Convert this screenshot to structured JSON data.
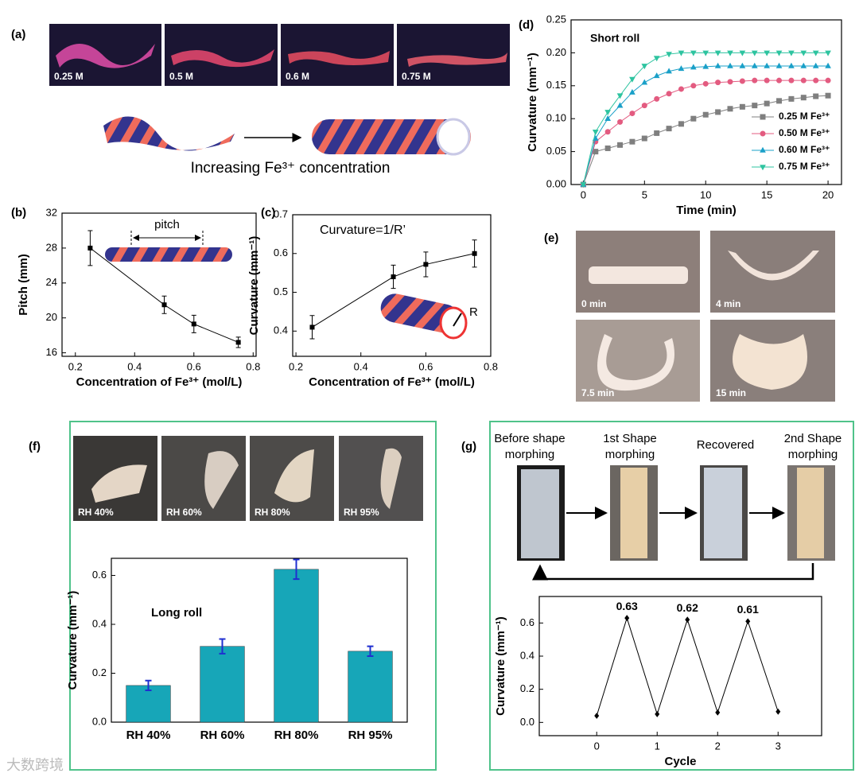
{
  "panel_labels": [
    "(a)",
    "(b)",
    "(c)",
    "(d)",
    "(e)",
    "(f)",
    "(g)"
  ],
  "panel_a": {
    "photo_labels": [
      "0.25 M",
      "0.5 M",
      "0.6 M",
      "0.75 M"
    ],
    "caption": "Increasing Fe³⁺ concentration"
  },
  "panel_e": {
    "photo_labels": [
      "0 min",
      "4 min",
      "7.5 min",
      "15 min"
    ]
  },
  "panel_f": {
    "photo_labels": [
      "RH 40%",
      "RH 60%",
      "RH 80%",
      "RH 95%"
    ]
  },
  "panel_g": {
    "steps": [
      "Before shape morphing",
      "1st Shape morphing",
      "Recovered",
      "2nd Shape morphing"
    ]
  },
  "watermark": "大数跨境",
  "chart_data": [
    {
      "type": "line",
      "x": [
        0.25,
        0.5,
        0.6,
        0.75
      ],
      "values": [
        28,
        21.5,
        19.3,
        17.2
      ],
      "errors": [
        2,
        1,
        1,
        0.6
      ],
      "color": "#000000",
      "marker": "square",
      "xlabel": "Concentration of Fe³⁺ (mol/L)",
      "ylabel": "Pitch (mm)",
      "annotation": "pitch",
      "xlim": [
        0.155,
        0.81
      ],
      "ylim": [
        15.6,
        32
      ],
      "xticks": [
        0.2,
        0.4,
        0.6,
        0.8
      ],
      "yticks": [
        16,
        20,
        24,
        28,
        32
      ]
    },
    {
      "type": "line",
      "x": [
        0.25,
        0.5,
        0.6,
        0.75
      ],
      "values": [
        0.41,
        0.54,
        0.572,
        0.6
      ],
      "errors": [
        0.03,
        0.03,
        0.032,
        0.035
      ],
      "color": "#000000",
      "marker": "square",
      "xlabel": "Concentration of Fe³⁺ (mol/L)",
      "ylabel": "Curvature (mm⁻¹)",
      "annotation": "Curvature=1/R’",
      "annotation2": "R",
      "xlim": [
        0.19,
        0.8
      ],
      "ylim": [
        0.335,
        0.7
      ],
      "xticks": [
        0.2,
        0.4,
        0.6,
        0.8
      ],
      "yticks": [
        0.4,
        0.5,
        0.6,
        0.7
      ]
    },
    {
      "type": "line",
      "title": "Short roll",
      "xlabel": "Time (min)",
      "ylabel": "Curvature (mm⁻¹)",
      "x": [
        0,
        1,
        2,
        3,
        4,
        5,
        6,
        7,
        8,
        9,
        10,
        11,
        12,
        13,
        14,
        15,
        16,
        17,
        18,
        19,
        20
      ],
      "series": [
        {
          "name": "0.25 M Fe³⁺",
          "color": "#7f7f7f",
          "marker": "square",
          "values": [
            0,
            0.05,
            0.055,
            0.06,
            0.065,
            0.07,
            0.078,
            0.085,
            0.092,
            0.1,
            0.106,
            0.11,
            0.115,
            0.118,
            0.12,
            0.123,
            0.127,
            0.13,
            0.132,
            0.134,
            0.135
          ]
        },
        {
          "name": "0.50 M Fe³⁺",
          "color": "#e35b80",
          "marker": "circle",
          "values": [
            0,
            0.065,
            0.08,
            0.095,
            0.108,
            0.12,
            0.13,
            0.138,
            0.145,
            0.15,
            0.153,
            0.155,
            0.156,
            0.157,
            0.158,
            0.158,
            0.158,
            0.158,
            0.158,
            0.158,
            0.158
          ]
        },
        {
          "name": "0.60 M Fe³⁺",
          "color": "#1aa0c8",
          "marker": "triangle-up",
          "values": [
            0,
            0.07,
            0.1,
            0.12,
            0.14,
            0.155,
            0.165,
            0.172,
            0.176,
            0.178,
            0.179,
            0.18,
            0.18,
            0.18,
            0.18,
            0.18,
            0.18,
            0.18,
            0.18,
            0.18,
            0.18
          ]
        },
        {
          "name": "0.75 M Fe³⁺",
          "color": "#2ec4a0",
          "marker": "triangle-down",
          "values": [
            0,
            0.08,
            0.11,
            0.135,
            0.16,
            0.18,
            0.192,
            0.198,
            0.2,
            0.2,
            0.2,
            0.2,
            0.2,
            0.2,
            0.2,
            0.2,
            0.2,
            0.2,
            0.2,
            0.2,
            0.2
          ]
        }
      ],
      "legend": "lower right",
      "xlim": [
        -1,
        21.1
      ],
      "ylim": [
        0,
        0.25
      ],
      "xticks": [
        0,
        5,
        10,
        15,
        20
      ],
      "yticks": [
        {
          "value": 0,
          "label": "0.00"
        },
        {
          "value": 0.05,
          "label": "0.05"
        },
        {
          "value": 0.1,
          "label": "0.10"
        },
        {
          "value": 0.15,
          "label": "0.15"
        },
        {
          "value": 0.2,
          "label": "0.20"
        },
        {
          "value": 0.25,
          "label": "0.25"
        }
      ]
    },
    {
      "type": "bar",
      "annotation": "Long roll",
      "ylabel": "Curvature (mm⁻¹)",
      "categories": [
        "RH 40%",
        "RH 60%",
        "RH 80%",
        "RH 95%"
      ],
      "values": [
        0.15,
        0.31,
        0.625,
        0.29
      ],
      "errors": [
        0.02,
        0.03,
        0.04,
        0.02
      ],
      "color": "#17a6b8",
      "error_color": "#1f2fd0",
      "ylim": [
        0,
        0.67
      ],
      "yticks": [
        {
          "value": 0,
          "label": "0.0"
        },
        0.2,
        0.4,
        0.6
      ]
    },
    {
      "type": "line",
      "xlabel": "Cycle",
      "ylabel": "Curvature (mm⁻¹)",
      "x": [
        0,
        0.5,
        1,
        1.5,
        2,
        2.5,
        3
      ],
      "values": [
        0.04,
        0.63,
        0.05,
        0.62,
        0.06,
        0.61,
        0.065
      ],
      "value_labels": [
        null,
        "0.63",
        null,
        "0.62",
        null,
        "0.61",
        null
      ],
      "color": "#000000",
      "marker": "diamond",
      "xlim": [
        -0.95,
        3.72
      ],
      "ylim": [
        -0.08,
        0.76
      ],
      "xticks": [
        0,
        1,
        2,
        3
      ],
      "yticks": [
        {
          "value": 0,
          "label": "0.0"
        },
        0.2,
        0.4,
        0.6
      ]
    }
  ]
}
